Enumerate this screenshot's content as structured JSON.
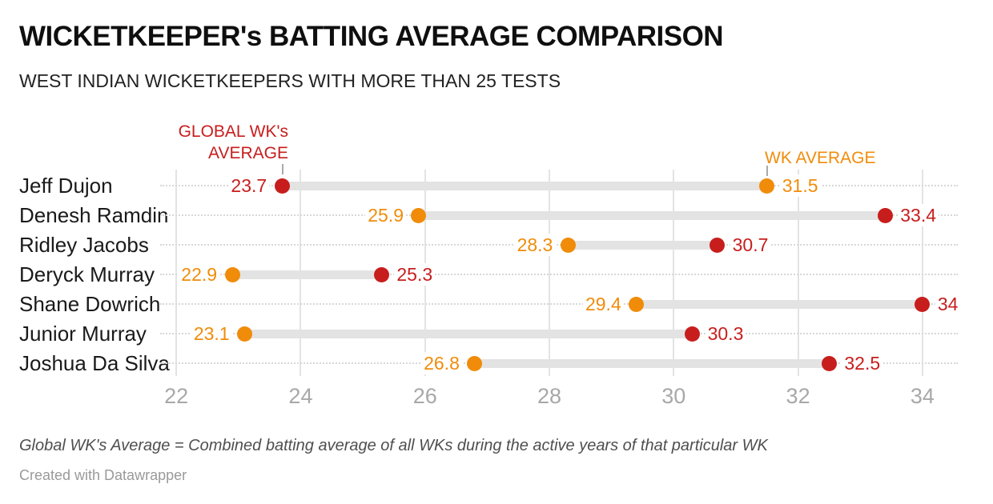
{
  "header": {
    "title": "WICKETKEEPER's BATTING AVERAGE COMPARISON",
    "subtitle": "WEST INDIAN WICKETKEEPERS WITH MORE THAN 25 TESTS"
  },
  "annotations": {
    "global_wk": {
      "text": "GLOBAL WK's\nAVERAGE",
      "color": "#c71e1d"
    },
    "wk": {
      "text": "WK AVERAGE",
      "color": "#f08c0a"
    }
  },
  "footer": {
    "note": "Global WK's Average = Combined batting average of all WKs during the active years of that particular WK",
    "attribution": "Created with Datawrapper"
  },
  "chart_data": {
    "type": "dumbbell",
    "title": "WICKETKEEPER's BATTING AVERAGE COMPARISON",
    "subtitle": "WEST INDIAN WICKETKEEPERS WITH MORE THAN 25 TESTS",
    "categories": [
      "Jeff Dujon",
      "Denesh Ramdin",
      "Ridley Jacobs",
      "Deryck Murray",
      "Shane Dowrich",
      "Junior Murray",
      "Joshua Da Silva"
    ],
    "series": [
      {
        "name": "WK AVERAGE",
        "color": "#f08c0a",
        "values": [
          31.5,
          25.9,
          28.3,
          22.9,
          29.4,
          23.1,
          26.8
        ]
      },
      {
        "name": "GLOBAL WK's AVERAGE",
        "color": "#c71e1d",
        "values": [
          23.7,
          33.4,
          30.7,
          25.3,
          34,
          30.3,
          32.5
        ]
      }
    ],
    "xticks": [
      22,
      24,
      26,
      28,
      30,
      32,
      34
    ],
    "xlim": [
      21.74,
      34.62
    ],
    "grid": "vertical-only",
    "legend_position": "annotations-above-first-row",
    "colors": {
      "connector": "#e3e3e3",
      "leader_dots": "#d8d8d8",
      "gridline": "#e3e3e3",
      "axis_text": "#a8a8a8"
    }
  }
}
